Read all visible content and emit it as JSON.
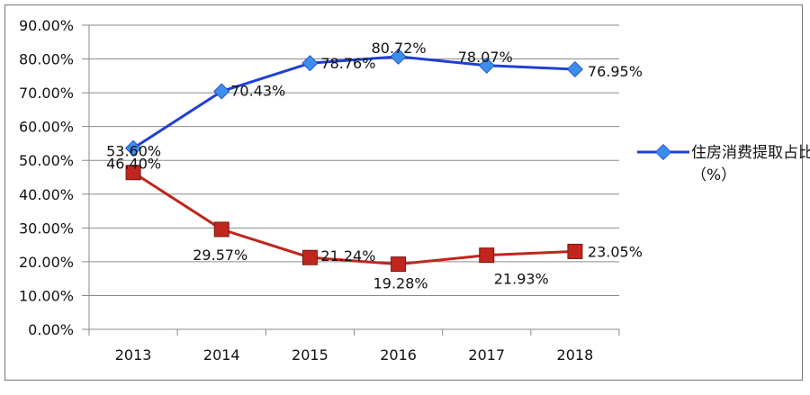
{
  "chart_data": {
    "type": "line",
    "title": "",
    "xlabel": "",
    "ylabel": "",
    "categories": [
      "2013",
      "2014",
      "2015",
      "2016",
      "2017",
      "2018"
    ],
    "ylim": [
      0,
      90
    ],
    "yticks": [
      "0.00%",
      "10.00%",
      "20.00%",
      "30.00%",
      "40.00%",
      "50.00%",
      "60.00%",
      "70.00%",
      "80.00%",
      "90.00%"
    ],
    "grid": true,
    "legend_position": "right",
    "series": [
      {
        "name": "住房消费提取占比（%）",
        "color": "#1f3fd6",
        "marker_color": "#3b8fe8",
        "marker": "diamond",
        "values": [
          53.6,
          70.43,
          78.76,
          80.72,
          78.07,
          76.95
        ],
        "labels": [
          "53.60%",
          "70.43%",
          "78.76%",
          "80.72%",
          "78.07%",
          "76.95%"
        ]
      },
      {
        "name": "",
        "color": "#c0261d",
        "marker_color": "#c0261d",
        "marker": "square",
        "values": [
          46.4,
          29.57,
          21.24,
          19.28,
          21.93,
          23.05
        ],
        "labels": [
          "46.40%",
          "29.57%",
          "21.24%",
          "19.28%",
          "21.93%",
          "23.05%"
        ]
      }
    ]
  }
}
